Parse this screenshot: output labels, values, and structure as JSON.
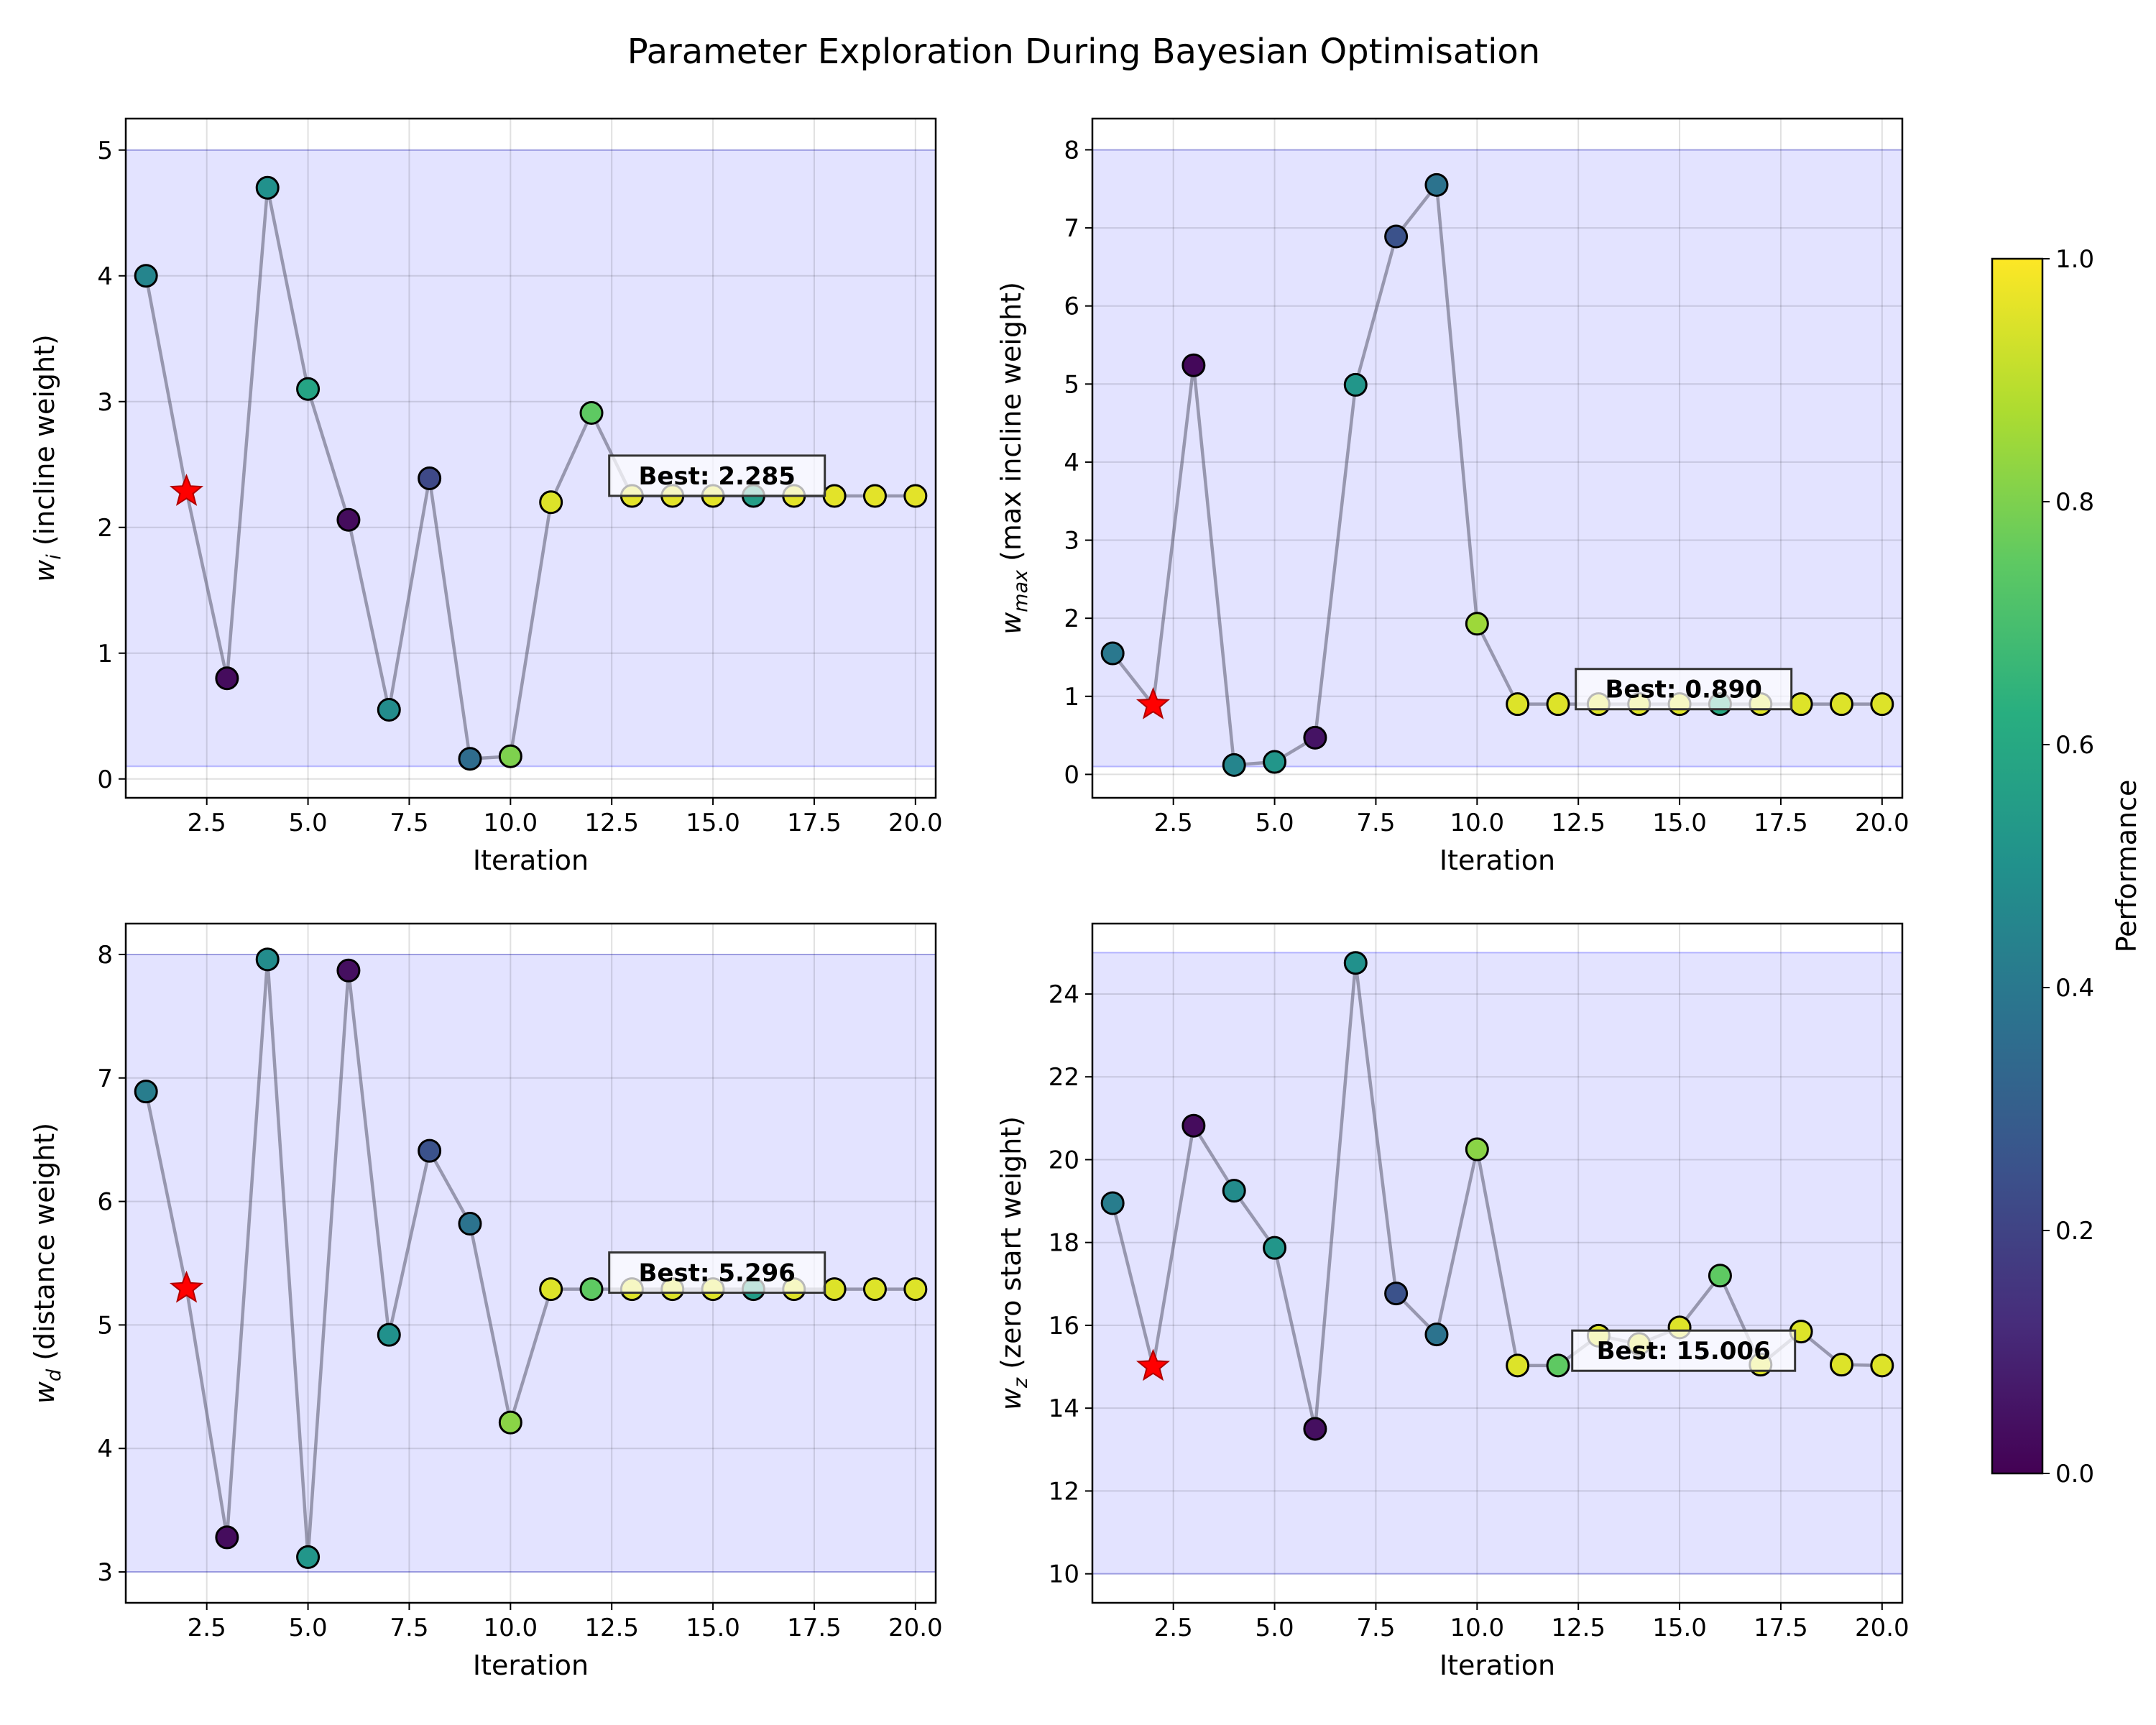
{
  "figure": {
    "title": "Parameter Exploration During Bayesian Optimisation",
    "colorbar": {
      "label": "Performance",
      "range": [
        0,
        1
      ],
      "ticks": [
        "0.0",
        "0.2",
        "0.4",
        "0.6",
        "0.8",
        "1.0"
      ],
      "colormap": "viridis"
    }
  },
  "chart_data": [
    {
      "type": "scatter",
      "panel": "top-left",
      "xlabel": "Iteration",
      "ylabel_symbol": "w",
      "ylabel_sub": "i",
      "ylabel_text": " (incline weight)",
      "xlim": [
        0.5,
        20.5
      ],
      "ylim": [
        -0.15,
        5.25
      ],
      "xticks": [
        2.5,
        5.0,
        7.5,
        10.0,
        12.5,
        15.0,
        17.5,
        20.0
      ],
      "yticks": [
        0,
        1,
        2,
        3,
        4,
        5
      ],
      "bounds": [
        0.1,
        5.0
      ],
      "best_label": "Best: 2.285",
      "best_iteration": 2,
      "x": [
        1,
        2,
        3,
        4,
        5,
        6,
        7,
        8,
        9,
        10,
        11,
        12,
        13,
        14,
        15,
        16,
        17,
        18,
        19,
        20
      ],
      "y": [
        4.0,
        2.285,
        0.8,
        4.7,
        3.1,
        2.06,
        0.55,
        2.39,
        0.16,
        0.18,
        2.2,
        2.91,
        2.25,
        2.25,
        2.25,
        2.25,
        2.25,
        2.25,
        2.25,
        2.25
      ],
      "performance": [
        0.45,
        1.0,
        0.03,
        0.5,
        0.58,
        0.03,
        0.48,
        0.22,
        0.35,
        0.8,
        0.95,
        0.75,
        0.96,
        0.96,
        0.96,
        0.55,
        0.96,
        0.96,
        0.96,
        0.96
      ]
    },
    {
      "type": "scatter",
      "panel": "top-right",
      "xlabel": "Iteration",
      "ylabel_symbol": "w",
      "ylabel_sub": "max",
      "ylabel_text": " (max incline weight)",
      "xlim": [
        0.5,
        20.5
      ],
      "ylim": [
        -0.3,
        8.4
      ],
      "xticks": [
        2.5,
        5.0,
        7.5,
        10.0,
        12.5,
        15.0,
        17.5,
        20.0
      ],
      "yticks": [
        0,
        1,
        2,
        3,
        4,
        5,
        6,
        7,
        8
      ],
      "bounds": [
        0.1,
        8.0
      ],
      "best_label": "Best: 0.890",
      "best_iteration": 2,
      "x": [
        1,
        2,
        3,
        4,
        5,
        6,
        7,
        8,
        9,
        10,
        11,
        12,
        13,
        14,
        15,
        16,
        17,
        18,
        19,
        20
      ],
      "y": [
        1.55,
        0.89,
        5.24,
        0.12,
        0.16,
        0.47,
        4.99,
        6.89,
        7.55,
        1.93,
        0.9,
        0.9,
        0.9,
        0.9,
        0.9,
        0.9,
        0.9,
        0.9,
        0.9,
        0.9
      ],
      "performance": [
        0.4,
        1.0,
        0.02,
        0.45,
        0.52,
        0.05,
        0.52,
        0.25,
        0.38,
        0.85,
        0.95,
        0.95,
        0.95,
        0.95,
        0.95,
        0.6,
        0.95,
        0.95,
        0.95,
        0.95
      ]
    },
    {
      "type": "scatter",
      "panel": "bottom-left",
      "xlabel": "Iteration",
      "ylabel_symbol": "w",
      "ylabel_sub": "d",
      "ylabel_text": " (distance weight)",
      "xlim": [
        0.5,
        20.5
      ],
      "ylim": [
        2.75,
        8.25
      ],
      "xticks": [
        2.5,
        5.0,
        7.5,
        10.0,
        12.5,
        15.0,
        17.5,
        20.0
      ],
      "yticks": [
        3,
        4,
        5,
        6,
        7,
        8
      ],
      "bounds": [
        3.0,
        8.0
      ],
      "best_label": "Best: 5.296",
      "best_iteration": 2,
      "x": [
        1,
        2,
        3,
        4,
        5,
        6,
        7,
        8,
        9,
        10,
        11,
        12,
        13,
        14,
        15,
        16,
        17,
        18,
        19,
        20
      ],
      "y": [
        6.89,
        5.296,
        3.28,
        7.96,
        3.12,
        7.87,
        4.92,
        6.41,
        5.82,
        4.21,
        5.29,
        5.29,
        5.29,
        5.29,
        5.29,
        5.29,
        5.29,
        5.29,
        5.29,
        5.29
      ],
      "performance": [
        0.42,
        1.0,
        0.03,
        0.48,
        0.52,
        0.04,
        0.5,
        0.25,
        0.38,
        0.82,
        0.95,
        0.75,
        0.95,
        0.95,
        0.95,
        0.55,
        0.95,
        0.95,
        0.95,
        0.95
      ]
    },
    {
      "type": "scatter",
      "panel": "bottom-right",
      "xlabel": "Iteration",
      "ylabel_symbol": "w",
      "ylabel_sub": "z",
      "ylabel_text": " (zero start weight)",
      "xlim": [
        0.5,
        20.5
      ],
      "ylim": [
        9.3,
        25.7
      ],
      "xticks": [
        2.5,
        5.0,
        7.5,
        10.0,
        12.5,
        15.0,
        17.5,
        20.0
      ],
      "yticks": [
        10,
        12,
        14,
        16,
        18,
        20,
        22,
        24
      ],
      "bounds": [
        10.0,
        25.0
      ],
      "best_label": "Best: 15.006",
      "best_iteration": 2,
      "x": [
        1,
        2,
        3,
        4,
        5,
        6,
        7,
        8,
        9,
        10,
        11,
        12,
        13,
        14,
        15,
        16,
        17,
        18,
        19,
        20
      ],
      "y": [
        18.95,
        15.006,
        20.82,
        19.25,
        17.87,
        13.5,
        24.75,
        16.77,
        15.78,
        20.25,
        15.03,
        15.03,
        15.75,
        15.55,
        15.95,
        17.2,
        15.05,
        15.85,
        15.05,
        15.03
      ],
      "performance": [
        0.42,
        1.0,
        0.03,
        0.48,
        0.52,
        0.04,
        0.5,
        0.25,
        0.38,
        0.82,
        0.95,
        0.75,
        0.95,
        0.95,
        0.95,
        0.75,
        0.95,
        0.95,
        0.95,
        0.95
      ]
    }
  ]
}
